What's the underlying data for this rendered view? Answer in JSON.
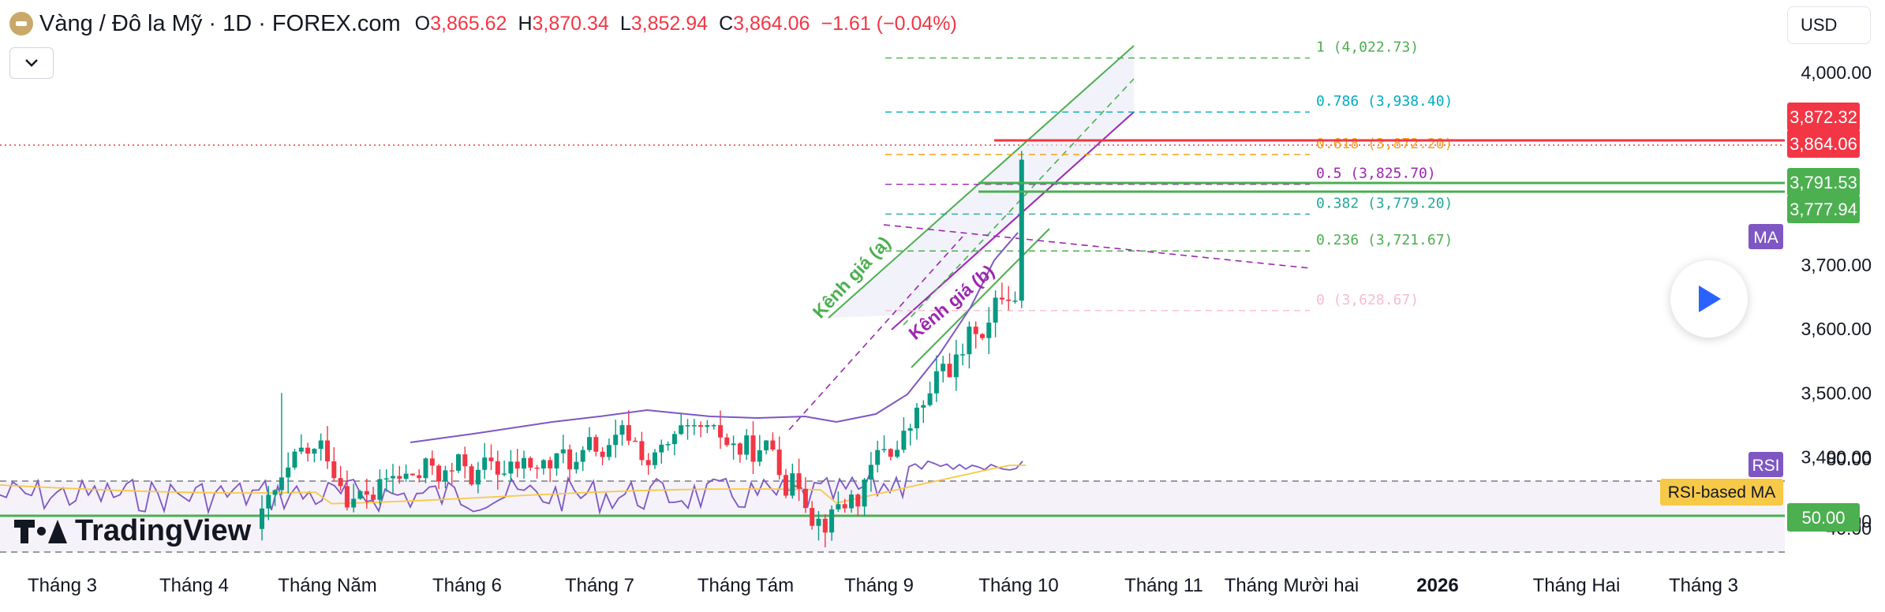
{
  "header": {
    "title": "Vàng / Đô la Mỹ · 1D · FOREX.com",
    "o_label": "O",
    "o_value": "3,865.62",
    "h_label": "H",
    "h_value": "3,870.34",
    "l_label": "L",
    "l_value": "3,852.94",
    "c_label": "C",
    "c_value": "3,864.06",
    "change": "−1.61 (−0.04%)"
  },
  "currency": "USD",
  "brand": "TradingView",
  "colors": {
    "up": "#089981",
    "down": "#f23645",
    "ma": "#7e57c2",
    "rsi": "#7e57c2",
    "rsi_ma": "#f7c948",
    "price_tag": "#f23645",
    "green_tag": "#4caf50",
    "bg": "#ffffff"
  },
  "chart_data": {
    "type": "candlestick",
    "x_ticks": [
      "Tháng 3",
      "Tháng 4",
      "Tháng Năm",
      "Tháng 6",
      "Tháng 7",
      "Tháng Tám",
      "Tháng 9",
      "Tháng 10",
      "Tháng 11",
      "Tháng Mười hai",
      "2026",
      "Tháng Hai",
      "Tháng 3"
    ],
    "y_ticks": [
      "4,000.00",
      "3,900.00",
      "3,800.00",
      "3,700.00",
      "3,600.00",
      "3,500.00",
      "3,400.00",
      "3,300.00"
    ],
    "y_tick_values": [
      4000,
      3900,
      3800,
      3700,
      3600,
      3500,
      3400,
      3300
    ],
    "ylim": [
      3290,
      4040
    ],
    "candles_summary": {
      "start_close": 3288,
      "april_spike_high": 3500,
      "range_low": 3270,
      "range_high": 3450,
      "breakout_month": "Tháng 9",
      "last_close": 3864.06
    },
    "price_tags": [
      {
        "value": 3872.32,
        "label": "3,872.32",
        "color": "#f23645"
      },
      {
        "value": 3864.06,
        "label": "3,864.06",
        "color": "#f23645"
      },
      {
        "value": 3791.53,
        "label": "3,791.53",
        "color": "#4caf50"
      },
      {
        "value": 3777.94,
        "label": "3,777.94",
        "color": "#4caf50"
      }
    ],
    "fibonacci": [
      {
        "level": "1",
        "value": 4022.73,
        "label": "1 (4,022.73)",
        "color": "#4caf50"
      },
      {
        "level": "0.786",
        "value": 3938.4,
        "label": "0.786 (3,938.40)",
        "color": "#00acc1"
      },
      {
        "level": "0.618",
        "value": 3872.2,
        "label": "0.618 (3,872.20)",
        "color": "#f7a21b"
      },
      {
        "level": "0.5",
        "value": 3825.7,
        "label": "0.5 (3,825.70)",
        "color": "#9c27b0"
      },
      {
        "level": "0.382",
        "value": 3779.2,
        "label": "0.382 (3,779.20)",
        "color": "#26a69a"
      },
      {
        "level": "0.236",
        "value": 3721.67,
        "label": "0.236 (3,721.67)",
        "color": "#4caf50"
      },
      {
        "level": "0",
        "value": 3628.67,
        "label": "0 (3,628.67)",
        "color": "#f8bbd0"
      }
    ],
    "annotations": [
      "Kênh giá (a)",
      "Kênh giá (b)"
    ],
    "indicators": [
      {
        "name": "MA",
        "badge": "MA"
      },
      {
        "name": "RSI",
        "badge": "RSI",
        "levels": [
          "80.00",
          "50.00",
          "40.00"
        ],
        "ma_label": "RSI-based MA",
        "current": "50.00"
      }
    ]
  }
}
